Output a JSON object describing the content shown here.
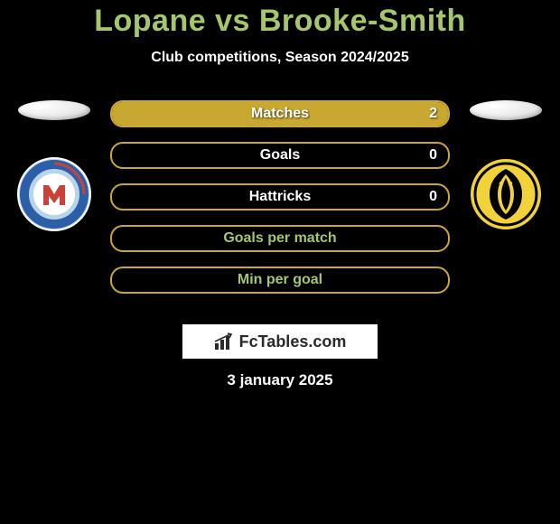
{
  "title": "Lopane vs Brooke-Smith",
  "subtitle": "Club competitions, Season 2024/2025",
  "date": "3 january 2025",
  "brand": "FcTables.com",
  "colors": {
    "title": "#a5c66b",
    "brand_text": "#2a2a2a",
    "background": "#000000"
  },
  "player_left": {
    "name": "Lopane",
    "club": {
      "name": "Melbourne City FC",
      "primary": "#b8d4e8",
      "secondary": "#c8423a",
      "ring": "#2d5fa8"
    }
  },
  "player_right": {
    "name": "Brooke-Smith",
    "club": {
      "name": "Wellington Phoenix",
      "primary": "#f2d23a",
      "secondary": "#000000",
      "ring": "#f2d23a"
    }
  },
  "stats": [
    {
      "label": "Matches",
      "left_value": "",
      "right_value": "2",
      "border_color": "#c9a832",
      "fill_color": "#c9a832",
      "fill_side": "right",
      "fill_percent": 100,
      "label_color": "#ffffff",
      "value_color": "#ffffff"
    },
    {
      "label": "Goals",
      "left_value": "",
      "right_value": "0",
      "border_color": "#c9a832",
      "fill_color": "#c9a832",
      "fill_side": "right",
      "fill_percent": 0,
      "label_color": "#ffffff",
      "value_color": "#ffffff"
    },
    {
      "label": "Hattricks",
      "left_value": "",
      "right_value": "0",
      "border_color": "#c9a832",
      "fill_color": "#c9a832",
      "fill_side": "right",
      "fill_percent": 0,
      "label_color": "#ffffff",
      "value_color": "#ffffff"
    },
    {
      "label": "Goals per match",
      "left_value": "",
      "right_value": "",
      "border_color": "#c9a832",
      "fill_color": "#c9a832",
      "fill_side": "right",
      "fill_percent": 0,
      "label_color": "#a5c66b",
      "value_color": "#ffffff"
    },
    {
      "label": "Min per goal",
      "left_value": "",
      "right_value": "",
      "border_color": "#c9a832",
      "fill_color": "#c9a832",
      "fill_side": "right",
      "fill_percent": 0,
      "label_color": "#a5c66b",
      "value_color": "#ffffff"
    }
  ]
}
